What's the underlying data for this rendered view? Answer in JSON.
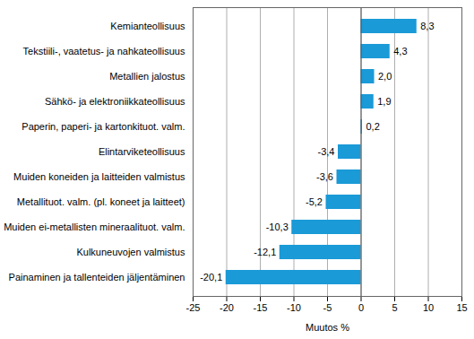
{
  "chart_data": {
    "type": "bar",
    "orientation": "horizontal",
    "x_label": "Muutos %",
    "categories": [
      "Kemianteollisuus",
      "Tekstiili-, vaatetus- ja nahkateollisuus",
      "Metallien jalostus",
      "Sähkö- ja elektroniikkateollisuus",
      "Paperin, paperi- ja kartonkituot. valm.",
      "Elintarviketeollisuus",
      "Muiden koneiden ja laitteiden valmistus",
      "Metallituot. valm. (pl. koneet ja laitteet)",
      "Muiden ei-metallisten mineraalituot. valm.",
      "Kulkuneuvojen valmistus",
      "Painaminen ja tallenteiden jäljentäminen"
    ],
    "values": [
      8.3,
      4.3,
      2.0,
      1.9,
      0.2,
      -3.4,
      -3.6,
      -5.2,
      -10.3,
      -12.1,
      -20.1
    ],
    "value_labels": [
      "8,3",
      "4,3",
      "2,0",
      "1,9",
      "0,2",
      "-3,4",
      "-3,6",
      "-5,2",
      "-10,3",
      "-12,1",
      "-20,1"
    ],
    "data_labels": true,
    "color": "#1a9ad7",
    "xlim": [
      -25,
      15
    ],
    "xticks": [
      -25,
      -20,
      -15,
      -10,
      -5,
      0,
      5,
      10,
      15
    ],
    "grid": true
  }
}
